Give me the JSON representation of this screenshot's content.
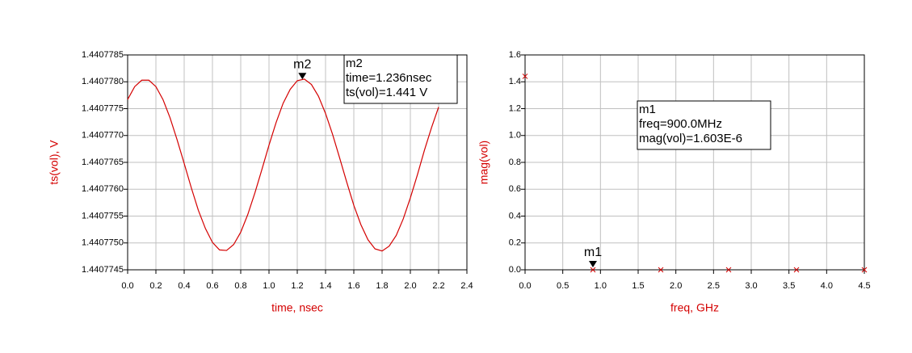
{
  "chart_data": [
    {
      "type": "line",
      "xlabel": "time, nsec",
      "ylabel": "ts(vol), V",
      "color": "#d40000",
      "grid": true,
      "xlim": [
        0,
        2.4
      ],
      "xticks": [
        {
          "value": 0,
          "label": "0.0"
        },
        0.2,
        0.4,
        0.6,
        0.8,
        {
          "value": 1,
          "label": "1.0"
        },
        1.2,
        1.4,
        1.6,
        1.8,
        {
          "value": 2,
          "label": "2.0"
        },
        2.2,
        2.4
      ],
      "ylim": [
        1.4407745,
        1.4407785
      ],
      "yticks": [
        1.4407745,
        {
          "value": 1.440775,
          "label": "1.4407750"
        },
        1.4407755,
        {
          "value": 1.440776,
          "label": "1.4407760"
        },
        1.4407765,
        {
          "value": 1.440777,
          "label": "1.4407770"
        },
        1.4407775,
        {
          "value": 1.440778,
          "label": "1.4407780"
        },
        1.4407785
      ],
      "x": [
        0,
        0.05,
        0.1,
        0.15,
        0.2,
        0.25,
        0.3,
        0.35,
        0.4,
        0.45,
        0.5,
        0.55,
        0.6,
        0.65,
        0.7,
        0.75,
        0.8,
        0.85,
        0.9,
        0.95,
        1,
        1.05,
        1.1,
        1.15,
        1.2,
        1.25,
        1.3,
        1.35,
        1.4,
        1.45,
        1.5,
        1.55,
        1.6,
        1.65,
        1.7,
        1.75,
        1.8,
        1.85,
        1.9,
        1.95,
        2,
        2.05,
        2.1,
        2.15,
        2.2
      ],
      "values": [
        1.44077767,
        1.44077791,
        1.44077803,
        1.44077803,
        1.44077791,
        1.44077767,
        1.44077733,
        1.44077692,
        1.44077648,
        1.44077603,
        1.44077561,
        1.44077527,
        1.44077501,
        1.44077487,
        1.44077486,
        1.44077497,
        1.4407752,
        1.44077553,
        1.44077593,
        1.44077637,
        1.44077682,
        1.44077724,
        1.4407776,
        1.44077786,
        1.44077802,
        1.44077805,
        1.44077795,
        1.44077773,
        1.44077741,
        1.44077702,
        1.44077658,
        1.44077613,
        1.4407757,
        1.44077534,
        1.44077506,
        1.44077489,
        1.44077485,
        1.44077494,
        1.44077514,
        1.44077545,
        1.44077584,
        1.44077627,
        1.44077673,
        1.44077715,
        1.44077753
      ],
      "marker": {
        "label": "m2",
        "x": 1.236,
        "y": 1.440778,
        "readout": [
          "m2",
          "time=1.236nsec",
          "ts(vol)=1.441 V"
        ]
      }
    },
    {
      "type": "scatter",
      "xlabel": "freq, GHz",
      "ylabel": "mag(vol)",
      "color": "#d40000",
      "grid": true,
      "xlim": [
        0,
        4.5
      ],
      "xticks": [
        {
          "value": 0,
          "label": "0.0"
        },
        0.5,
        {
          "value": 1,
          "label": "1.0"
        },
        1.5,
        {
          "value": 2,
          "label": "2.0"
        },
        2.5,
        {
          "value": 3,
          "label": "3.0"
        },
        3.5,
        {
          "value": 4,
          "label": "4.0"
        },
        4.5
      ],
      "ylim": [
        0,
        1.6
      ],
      "yticks": [
        {
          "value": 0,
          "label": "0.0"
        },
        0.2,
        0.4,
        0.6,
        0.8,
        {
          "value": 1,
          "label": "1.0"
        },
        1.2,
        1.4,
        1.6
      ],
      "x": [
        0,
        0.9,
        1.8,
        2.7,
        3.6,
        4.5
      ],
      "values": [
        1.441,
        1.603e-06,
        0,
        0,
        0,
        0
      ],
      "marker": {
        "label": "m1",
        "x": 0.9,
        "y": 1.603e-06,
        "readout": [
          "m1",
          "freq=900.0MHz",
          "mag(vol)=1.603E-6"
        ]
      }
    }
  ]
}
